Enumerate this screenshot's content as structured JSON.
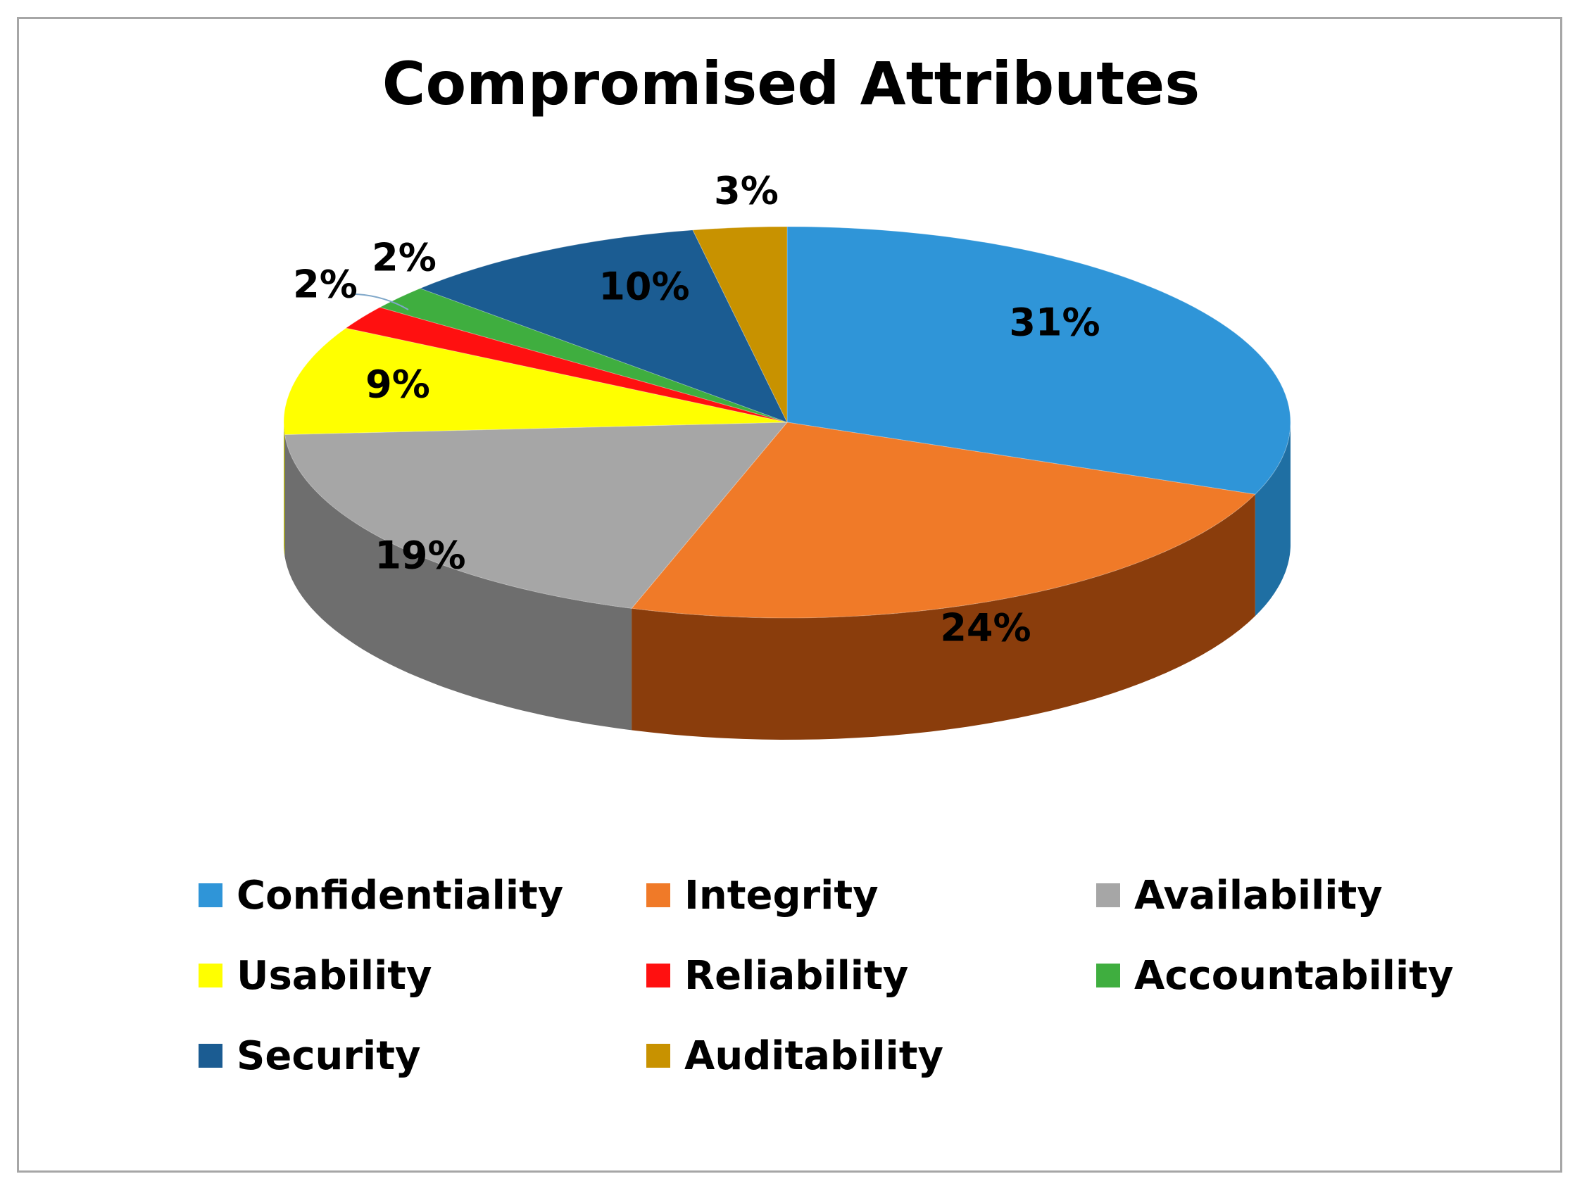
{
  "chart_data": {
    "type": "pie",
    "title": "Compromised Attributes",
    "categories": [
      "Confidentiality",
      "Integrity",
      "Availability",
      "Usability",
      "Reliability",
      "Accountability",
      "Security",
      "Auditability"
    ],
    "values": [
      31,
      24,
      19,
      9,
      2,
      2,
      10,
      3
    ],
    "data_labels": [
      "31%",
      "24%",
      "19%",
      "9%",
      "2%",
      "2%",
      "10%",
      "3%"
    ],
    "colors": [
      "#2F95D8",
      "#F07A28",
      "#A6A6A6",
      "#FFFF00",
      "#FF1010",
      "#3FAE3F",
      "#1B5C92",
      "#C89200"
    ],
    "side_colors": [
      "#1f6fa3",
      "#8a3d0c",
      "#6e6e6e",
      "#b3b300",
      "#a80000",
      "#237323",
      "#0f3a5e",
      "#8a6500"
    ],
    "legend": {
      "position": "bottom",
      "entries": [
        "Confidentiality",
        "Integrity",
        "Availability",
        "Usability",
        "Reliability",
        "Accountability",
        "Security",
        "Auditability"
      ]
    },
    "style": "3d-tilted"
  }
}
